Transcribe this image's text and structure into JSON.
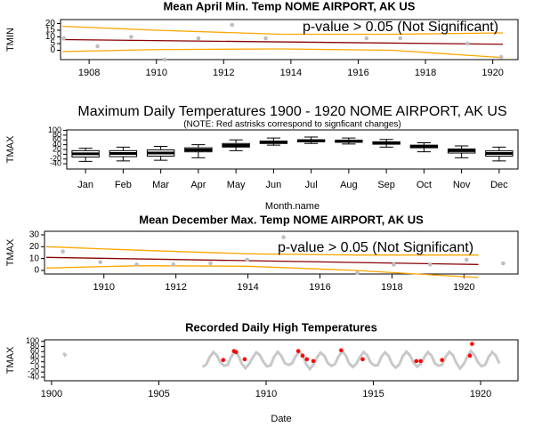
{
  "chart_data": [
    {
      "type": "scatter",
      "title": "Mean April Min. Temp NOME AIRPORT, AK US",
      "ylabel": "TMIN",
      "annotation": "p-value > 0.05 (Not Significant)",
      "point_color": "#bebebe",
      "x": [
        1907.25,
        1908.25,
        1909.25,
        1910.25,
        1911.25,
        1912.25,
        1913.25,
        1916.25,
        1917.25,
        1919.25,
        1920.25
      ],
      "values": [
        9,
        3,
        10,
        -7,
        9,
        19,
        9,
        9,
        9,
        5,
        -5
      ],
      "lines": [
        {
          "color": "#8b0000",
          "x": [
            1907.2,
            1920.3
          ],
          "values": [
            8,
            4.5
          ]
        },
        {
          "color": "#ffa500",
          "x": [
            1907.2,
            1910,
            1913.7,
            1917,
            1920.3
          ],
          "values": [
            18,
            15,
            12,
            12,
            13
          ]
        },
        {
          "color": "#ffa500",
          "x": [
            1907.2,
            1910,
            1913.7,
            1917,
            1920.3
          ],
          "values": [
            -1,
            0.5,
            1,
            0,
            -5.5
          ]
        }
      ],
      "xlim": [
        1907.15,
        1920.75
      ],
      "xticks": [
        1908,
        1910,
        1912,
        1914,
        1916,
        1918,
        1920
      ],
      "ylim": [
        -7,
        23
      ],
      "yticks": [
        0,
        5,
        10,
        15,
        20
      ]
    },
    {
      "type": "box",
      "title": "Maximum Daily Temperatures 1900 - 1920 NOME AIRPORT, AK US",
      "subtitle": "(NOTE: Red astrisks correspond to signficant changes)",
      "ylabel": "TMAX",
      "xlabel": "Month.name",
      "categories": [
        "Jan",
        "Feb",
        "Mar",
        "Apr",
        "May",
        "Jun",
        "Jul",
        "Aug",
        "Sep",
        "Oct",
        "Nov",
        "Dec"
      ],
      "min": [
        -30,
        -28,
        -25,
        -15,
        15,
        38,
        45,
        43,
        30,
        10,
        -15,
        -28
      ],
      "q1": [
        -12,
        -10,
        -8,
        10,
        30,
        45,
        52,
        50,
        42,
        27,
        5,
        -8
      ],
      "median": [
        2,
        3,
        5,
        18,
        37,
        50,
        57,
        55,
        47,
        33,
        15,
        3
      ],
      "q3": [
        15,
        15,
        18,
        27,
        45,
        55,
        60,
        58,
        52,
        38,
        22,
        14
      ],
      "max": [
        25,
        30,
        33,
        40,
        60,
        68,
        72,
        68,
        62,
        48,
        35,
        30
      ],
      "ylim": [
        -62,
        102
      ],
      "yticks": [
        -40,
        -20,
        0,
        20,
        40,
        60,
        80,
        100
      ]
    },
    {
      "type": "scatter",
      "title": "Mean December Max. Temp NOME AIRPORT, AK US",
      "ylabel": "TMAX",
      "annotation": "p-value > 0.05 (Not Significant)",
      "point_color": "#bebebe",
      "x": [
        1908.86,
        1909.9,
        1910.91,
        1911.93,
        1912.96,
        1913.98,
        1914.99,
        1917.04,
        1918.05,
        1919.06,
        1920.07,
        1921.09
      ],
      "values": [
        16,
        7,
        5,
        5,
        6,
        9,
        28,
        -2,
        5,
        5,
        9,
        6
      ],
      "lines": [
        {
          "color": "#8b0000",
          "x": [
            1908.4,
            1920.4
          ],
          "values": [
            11,
            5
          ]
        },
        {
          "color": "#ffa500",
          "x": [
            1908.4,
            1911,
            1914,
            1917,
            1920.4
          ],
          "values": [
            20,
            17,
            14,
            13,
            13
          ]
        },
        {
          "color": "#ffa500",
          "x": [
            1908.4,
            1911,
            1914,
            1917,
            1920.4
          ],
          "values": [
            2,
            4,
            3.5,
            0,
            -6
          ]
        }
      ],
      "xlim": [
        1908.35,
        1921.5
      ],
      "xticks": [
        1910,
        1912,
        1914,
        1916,
        1918,
        1920
      ],
      "ylim": [
        -3,
        33
      ],
      "yticks": [
        0,
        10,
        20,
        30
      ]
    },
    {
      "type": "line",
      "title": "Recorded Daily High Temperatures",
      "ylabel": "TMAX",
      "xlabel": "Date",
      "color": "#c8c8c8",
      "highlight_color": "#ff0000",
      "x": [
        1900.55,
        1900.62,
        1900.7,
        1904,
        1907.04,
        1907.21,
        1907.37,
        1907.54,
        1907.71,
        1907.87,
        1908.04,
        1908.21,
        1908.37,
        1908.54,
        1908.71,
        1908.87,
        1909.04,
        1909.21,
        1909.37,
        1909.54,
        1909.71,
        1909.87,
        1910.04,
        1910.21,
        1910.37,
        1910.54,
        1910.71,
        1910.87,
        1911.04,
        1911.21,
        1911.37,
        1911.54,
        1911.71,
        1911.87,
        1912.04,
        1912.21,
        1912.37,
        1912.54,
        1912.71,
        1912.87,
        1913.04,
        1913.21,
        1913.37,
        1913.54,
        1913.71,
        1913.87,
        1914.04,
        1914.21,
        1914.37,
        1914.54,
        1914.71,
        1914.87,
        1915.04,
        1915.21,
        1915.37,
        1915.54,
        1915.71,
        1915.87,
        1916.04,
        1916.21,
        1916.37,
        1916.54,
        1916.71,
        1916.87,
        1917.04,
        1917.21,
        1917.37,
        1917.54,
        1917.71,
        1917.87,
        1918.04,
        1918.21,
        1918.37,
        1918.54,
        1918.71,
        1918.87,
        1919.04,
        1919.21,
        1919.37,
        1919.54,
        1919.71,
        1919.87,
        1920.04,
        1920.21,
        1920.37,
        1920.54,
        1920.71,
        1920.87
      ],
      "values": [
        55,
        45,
        50,
        null,
        0,
        10,
        38,
        58,
        45,
        18,
        5,
        8,
        40,
        60,
        44,
        12,
        -5,
        12,
        36,
        57,
        46,
        20,
        2,
        6,
        39,
        59,
        43,
        15,
        8,
        14,
        41,
        60,
        47,
        10,
        -8,
        9,
        37,
        56,
        44,
        16,
        4,
        11,
        40,
        61,
        45,
        14,
        0,
        13,
        38,
        58,
        46,
        18,
        6,
        7,
        39,
        57,
        43,
        12,
        -3,
        10,
        42,
        60,
        45,
        17,
        1,
        12,
        37,
        58,
        44,
        13,
        5,
        9,
        40,
        59,
        46,
        15,
        -6,
        11,
        38,
        62,
        47,
        19,
        3,
        8,
        39,
        58,
        44,
        14
      ],
      "highlight_x": [
        1908.0,
        1908.5,
        1908.6,
        1909.0,
        1911.5,
        1911.7,
        1911.9,
        1912.2,
        1913.5,
        1914.5,
        1917.0,
        1917.2,
        1918.2,
        1919.5,
        1919.6
      ],
      "highlight_values": [
        27,
        62,
        58,
        30,
        62,
        44,
        30,
        23,
        65,
        30,
        23,
        23,
        27,
        44,
        90
      ],
      "xlim": [
        1899.67,
        1921.74
      ],
      "xticks": [
        1900,
        1905,
        1910,
        1915,
        1920
      ],
      "ylim": [
        -54,
        106
      ],
      "yticks": [
        -40,
        -20,
        0,
        20,
        40,
        60,
        80,
        100
      ]
    }
  ]
}
